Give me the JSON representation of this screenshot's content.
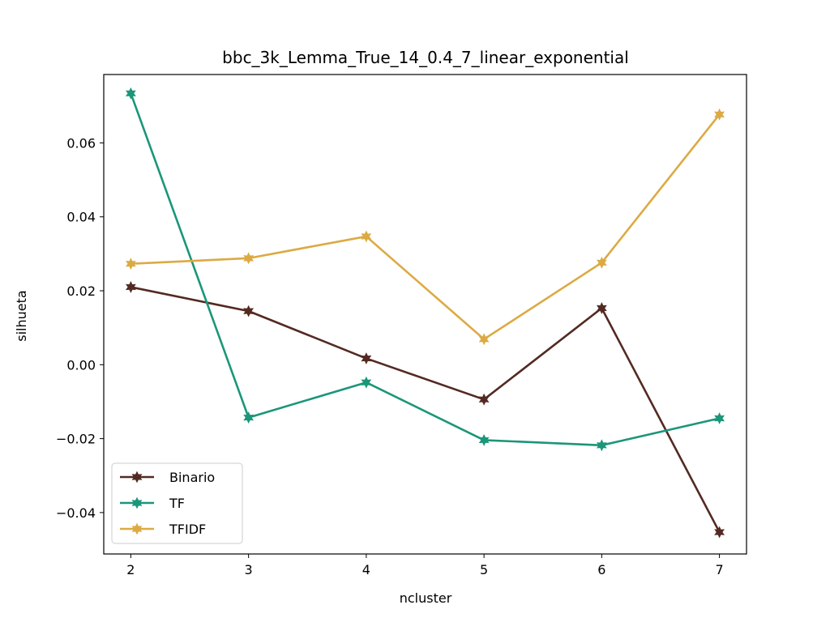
{
  "chart_data": {
    "type": "line",
    "title": "bbc_3k_Lemma_True_14_0.4_7_linear_exponential",
    "xlabel": "ncluster",
    "ylabel": "silhueta",
    "x": [
      2,
      3,
      4,
      5,
      6,
      7
    ],
    "xlim": [
      1.77,
      7.23
    ],
    "ylim": [
      -0.0512,
      0.0785
    ],
    "xticks": [
      "2",
      "3",
      "4",
      "5",
      "6",
      "7"
    ],
    "yticks": [
      -0.04,
      -0.02,
      0.0,
      0.02,
      0.04,
      0.06
    ],
    "ytick_labels": [
      "−0.04",
      "−0.02",
      "0.00",
      "0.02",
      "0.04",
      "0.06"
    ],
    "grid": false,
    "legend_position": "lower-left",
    "series": [
      {
        "name": "Binario",
        "color": "#532a22",
        "values": [
          0.021,
          0.0145,
          0.0017,
          -0.0094,
          0.0153,
          -0.0453
        ]
      },
      {
        "name": "TF",
        "color": "#1b9679",
        "values": [
          0.0734,
          -0.0143,
          -0.0048,
          -0.0204,
          -0.0218,
          -0.0145
        ]
      },
      {
        "name": "TFIDF",
        "color": "#dcaa43",
        "values": [
          0.0273,
          0.0288,
          0.0347,
          0.0069,
          0.0276,
          0.0677
        ]
      }
    ]
  }
}
